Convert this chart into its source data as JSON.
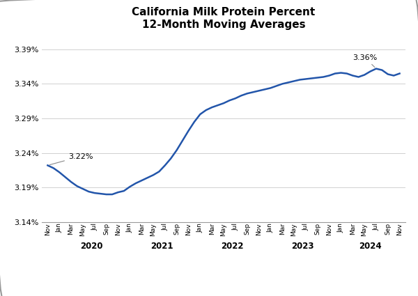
{
  "title": "California Milk Protein Percent\n12-Month Moving Averages",
  "line_color": "#2255aa",
  "line_width": 1.8,
  "background_color": "#ffffff",
  "ylim": [
    3.14,
    3.41
  ],
  "yticks": [
    3.14,
    3.19,
    3.24,
    3.29,
    3.34,
    3.39
  ],
  "annotation_first_label": "3.22%",
  "annotation_last_label": "3.36%",
  "values": [
    3.222,
    3.218,
    3.212,
    3.205,
    3.198,
    3.192,
    3.188,
    3.184,
    3.182,
    3.181,
    3.18,
    3.18,
    3.183,
    3.185,
    3.191,
    3.196,
    3.2,
    3.204,
    3.208,
    3.213,
    3.222,
    3.232,
    3.244,
    3.258,
    3.272,
    3.285,
    3.296,
    3.302,
    3.306,
    3.309,
    3.312,
    3.316,
    3.319,
    3.323,
    3.326,
    3.328,
    3.33,
    3.332,
    3.334,
    3.337,
    3.34,
    3.342,
    3.344,
    3.346,
    3.347,
    3.348,
    3.349,
    3.35,
    3.352,
    3.355,
    3.356,
    3.355,
    3.352,
    3.35,
    3.353,
    3.358,
    3.362,
    3.36,
    3.354,
    3.352,
    3.355
  ],
  "x_tick_labels": [
    "Nov",
    "Jan",
    "Mar",
    "May",
    "Jul",
    "Sep",
    "Nov",
    "Jan",
    "Mar",
    "May",
    "Jul",
    "Sep",
    "Nov",
    "Jan",
    "Mar",
    "May",
    "Jul",
    "Sep",
    "Nov",
    "Jan",
    "Mar",
    "May",
    "Jul",
    "Sep",
    "Nov",
    "Jan",
    "Mar",
    "May",
    "Jul",
    "Sep",
    "Nov"
  ],
  "year_labels": [
    "2020",
    "2021",
    "2022",
    "2023",
    "2024"
  ],
  "year_tick_indices": [
    1,
    7,
    13,
    19,
    25
  ]
}
